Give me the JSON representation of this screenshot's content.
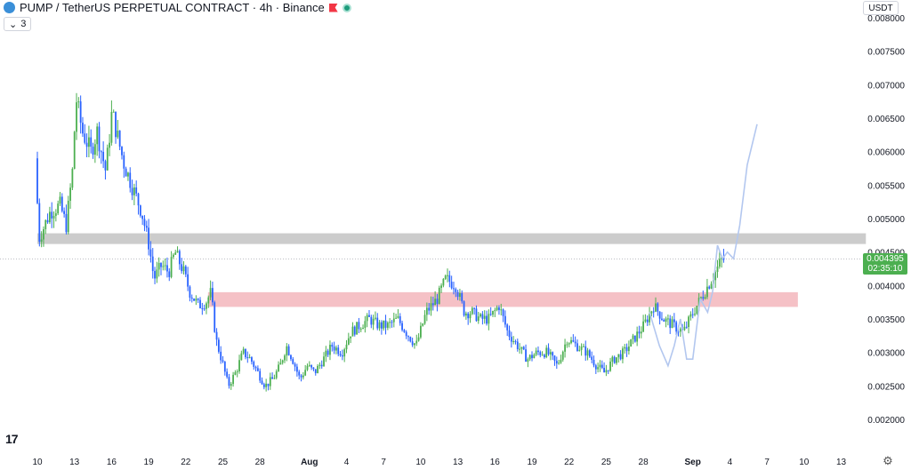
{
  "header": {
    "title": "PUMP / TetherUS PERPETUAL CONTRACT · 4h · Binance",
    "indicator_count": "3"
  },
  "currency": "USDT",
  "last_price": {
    "price": "0.004395",
    "countdown": "02:35:10",
    "value": 0.004395,
    "color": "#4caf50"
  },
  "colors": {
    "up": "#4caf50",
    "down": "#2962ff",
    "support_zone": "#f5c1c6",
    "resistance_zone": "#cccccc",
    "projection": "#b3c7ef"
  },
  "chart_data": {
    "type": "candlestick",
    "ylim": [
      0.0019,
      0.008
    ],
    "y_ticks": [
      "0.008000",
      "0.007500",
      "0.007000",
      "0.006500",
      "0.006000",
      "0.005500",
      "0.005000",
      "0.004500",
      "0.004000",
      "0.003500",
      "0.003000",
      "0.002500",
      "0.002000"
    ],
    "x_ticks": [
      "10",
      "13",
      "16",
      "19",
      "22",
      "25",
      "28",
      "Aug",
      "4",
      "7",
      "10",
      "13",
      "16",
      "19",
      "22",
      "25",
      "28",
      "Sep",
      "4",
      "7",
      "10",
      "13"
    ],
    "x_tick_days": [
      0,
      3,
      6,
      9,
      12,
      15,
      18,
      22,
      25,
      28,
      31,
      34,
      37,
      40,
      43,
      46,
      49,
      53,
      56,
      59,
      62,
      65
    ],
    "price_path": [
      [
        0,
        0.0059
      ],
      [
        0.3,
        0.0047
      ],
      [
        1.2,
        0.0051
      ],
      [
        2,
        0.0052
      ],
      [
        2.5,
        0.0049
      ],
      [
        3,
        0.0057
      ],
      [
        3.3,
        0.0068
      ],
      [
        3.8,
        0.0063
      ],
      [
        4.5,
        0.006
      ],
      [
        5,
        0.0063
      ],
      [
        5.7,
        0.0057
      ],
      [
        6.2,
        0.0066
      ],
      [
        6.8,
        0.0061
      ],
      [
        7.2,
        0.0058
      ],
      [
        8,
        0.0054
      ],
      [
        8.6,
        0.0051
      ],
      [
        9.2,
        0.0046
      ],
      [
        9.6,
        0.0041
      ],
      [
        10.2,
        0.0043
      ],
      [
        10.8,
        0.0042
      ],
      [
        11.3,
        0.0045
      ],
      [
        12,
        0.0042
      ],
      [
        12.5,
        0.0039
      ],
      [
        13.2,
        0.0037
      ],
      [
        13.8,
        0.00375
      ],
      [
        14.2,
        0.0039
      ],
      [
        14.6,
        0.0032
      ],
      [
        15.2,
        0.0028
      ],
      [
        15.6,
        0.0025
      ],
      [
        16.2,
        0.0027
      ],
      [
        16.8,
        0.003
      ],
      [
        17.4,
        0.0029
      ],
      [
        18,
        0.0027
      ],
      [
        18.6,
        0.0025
      ],
      [
        19.2,
        0.0026
      ],
      [
        19.8,
        0.0028
      ],
      [
        20.3,
        0.0031
      ],
      [
        20.8,
        0.0029
      ],
      [
        21.4,
        0.0026
      ],
      [
        22,
        0.0028
      ],
      [
        22.6,
        0.0027
      ],
      [
        23.3,
        0.0029
      ],
      [
        24,
        0.0031
      ],
      [
        24.8,
        0.003
      ],
      [
        25.5,
        0.0033
      ],
      [
        26.2,
        0.0034
      ],
      [
        27,
        0.0035
      ],
      [
        27.8,
        0.0034
      ],
      [
        28.5,
        0.0034
      ],
      [
        29.3,
        0.0035
      ],
      [
        30,
        0.0033
      ],
      [
        30.8,
        0.0031
      ],
      [
        31.6,
        0.0036
      ],
      [
        32.5,
        0.0038
      ],
      [
        33.2,
        0.0041
      ],
      [
        34,
        0.004
      ],
      [
        34.7,
        0.0036
      ],
      [
        35.3,
        0.0036
      ],
      [
        36,
        0.0035
      ],
      [
        36.7,
        0.0035
      ],
      [
        37.5,
        0.0037
      ],
      [
        38.2,
        0.0033
      ],
      [
        39,
        0.0031
      ],
      [
        39.8,
        0.0029
      ],
      [
        40.6,
        0.003
      ],
      [
        41.4,
        0.003
      ],
      [
        42.2,
        0.0028
      ],
      [
        43,
        0.0032
      ],
      [
        43.8,
        0.0031
      ],
      [
        44.6,
        0.003
      ],
      [
        45.4,
        0.0028
      ],
      [
        46,
        0.0027
      ],
      [
        46.8,
        0.0029
      ],
      [
        47.6,
        0.003
      ],
      [
        48.4,
        0.0032
      ],
      [
        49.2,
        0.0034
      ],
      [
        50,
        0.0037
      ],
      [
        50.8,
        0.0035
      ],
      [
        51.6,
        0.0034
      ],
      [
        52.4,
        0.0033
      ],
      [
        53.2,
        0.0036
      ],
      [
        53.8,
        0.0038
      ],
      [
        54.4,
        0.004
      ],
      [
        55,
        0.0042
      ],
      [
        55.5,
        0.00439
      ]
    ],
    "zones": [
      {
        "name": "resistance",
        "from_day": 0,
        "to_day": 67,
        "y0": 0.00462,
        "y1": 0.00478,
        "color": "#cccccc"
      },
      {
        "name": "support",
        "from_day": 13.8,
        "to_day": 61.5,
        "y0": 0.00368,
        "y1": 0.0039,
        "color": "#f5c1c6"
      }
    ],
    "projection_path": [
      [
        49.5,
        0.0036
      ],
      [
        50.3,
        0.0031
      ],
      [
        51,
        0.0028
      ],
      [
        51.5,
        0.0031
      ],
      [
        52,
        0.0035
      ],
      [
        52.5,
        0.0029
      ],
      [
        53,
        0.0029
      ],
      [
        53.6,
        0.0038
      ],
      [
        54.2,
        0.0036
      ],
      [
        54.6,
        0.0039
      ],
      [
        55,
        0.0046
      ],
      [
        55.4,
        0.0044
      ],
      [
        55.8,
        0.0045
      ],
      [
        56.3,
        0.0044
      ],
      [
        56.8,
        0.0049
      ],
      [
        57.4,
        0.0058
      ],
      [
        58.2,
        0.00641
      ]
    ]
  }
}
